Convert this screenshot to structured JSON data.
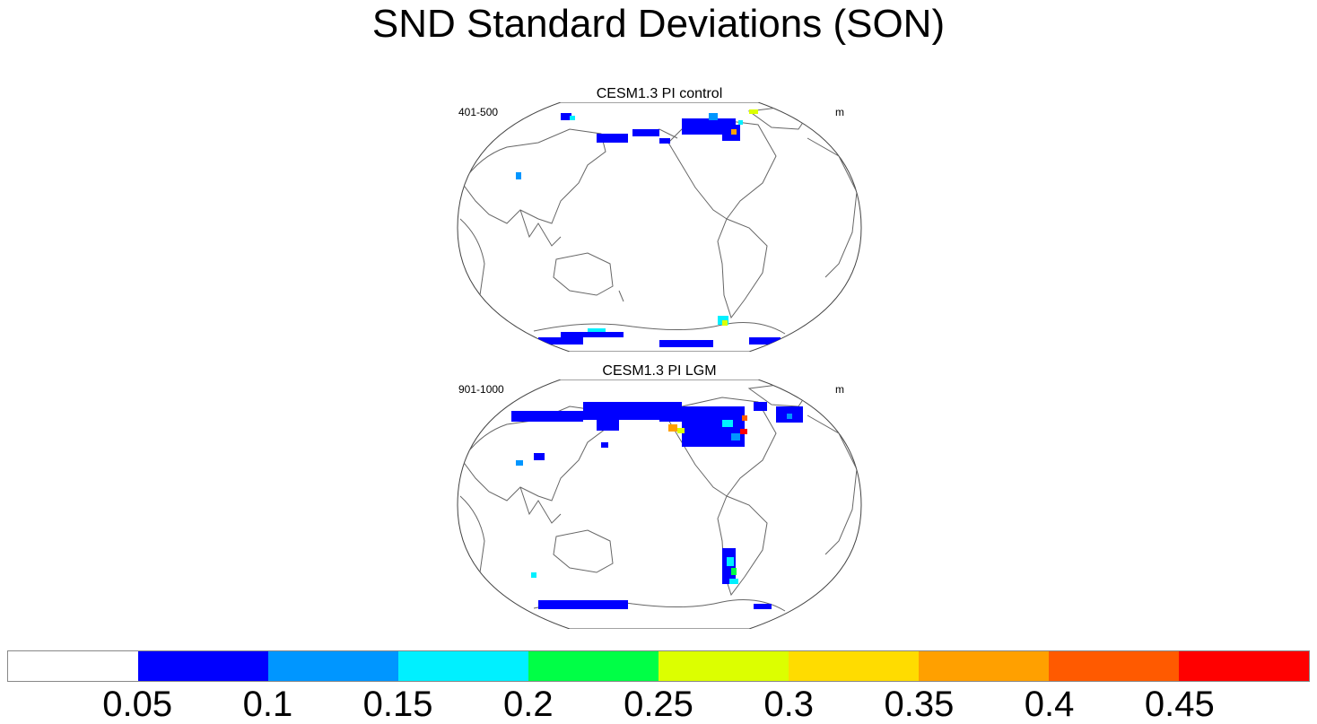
{
  "title": "SND Standard Deviations (SON)",
  "panels": [
    {
      "title": "CESM1.3 PI control",
      "left_label": "401-500",
      "right_label": "m"
    },
    {
      "title": "CESM1.3 PI LGM",
      "left_label": "901-1000",
      "right_label": "m"
    }
  ],
  "colorbar": {
    "colors": [
      "#ffffff",
      "#0000ff",
      "#0096ff",
      "#00f0ff",
      "#00ff46",
      "#dcff00",
      "#ffdc00",
      "#ffa000",
      "#ff5a00",
      "#ff0000"
    ],
    "tick_labels": [
      "0.05",
      "0.1",
      "0.15",
      "0.2",
      "0.25",
      "0.3",
      "0.35",
      "0.4",
      "0.45"
    ]
  }
}
